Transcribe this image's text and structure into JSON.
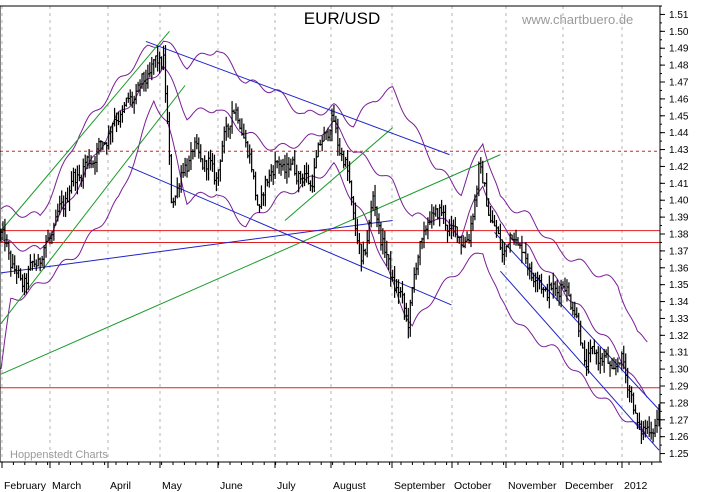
{
  "chart_data": {
    "type": "ohlc",
    "title": "EUR/USD",
    "watermark": "www.chartbuero.de",
    "source": "Hoppenstedt Charts",
    "yticks": [
      "1.25",
      "1.26",
      "1.27",
      "1.28",
      "1.29",
      "1.30",
      "1.31",
      "1.32",
      "1.33",
      "1.34",
      "1.35",
      "1.36",
      "1.37",
      "1.38",
      "1.39",
      "1.40",
      "1.41",
      "1.42",
      "1.43",
      "1.44",
      "1.45",
      "1.46",
      "1.47",
      "1.48",
      "1.49",
      "1.50",
      "1.51"
    ],
    "ylim": [
      1.245,
      1.515
    ],
    "months": [
      "February",
      "March",
      "April",
      "May",
      "June",
      "July",
      "August",
      "September",
      "October",
      "November",
      "December",
      "2012"
    ],
    "colors": {
      "bars": "#000000",
      "bands": "#7a1f96",
      "channel": "#1f23c8",
      "trend": "#1a9a2a",
      "levels": "#e02020",
      "grid": "#b4b4b4"
    },
    "horizontal_levels": [
      1.429,
      1.382,
      1.375,
      1.289
    ],
    "dotted_levels": [
      1.429
    ],
    "anchors": [
      [
        0,
        1.38
      ],
      [
        10,
        1.35
      ],
      [
        22,
        1.37
      ],
      [
        36,
        1.41
      ],
      [
        50,
        1.43
      ],
      [
        60,
        1.45
      ],
      [
        70,
        1.465
      ],
      [
        78,
        1.48
      ],
      [
        83,
        1.485
      ],
      [
        87,
        1.4
      ],
      [
        98,
        1.43
      ],
      [
        110,
        1.415
      ],
      [
        118,
        1.455
      ],
      [
        124,
        1.44
      ],
      [
        132,
        1.395
      ],
      [
        138,
        1.42
      ],
      [
        148,
        1.42
      ],
      [
        158,
        1.41
      ],
      [
        165,
        1.44
      ],
      [
        170,
        1.445
      ],
      [
        178,
        1.41
      ],
      [
        184,
        1.36
      ],
      [
        190,
        1.4
      ],
      [
        198,
        1.36
      ],
      [
        208,
        1.33
      ],
      [
        214,
        1.375
      ],
      [
        222,
        1.395
      ],
      [
        232,
        1.38
      ],
      [
        239,
        1.375
      ],
      [
        244,
        1.42
      ],
      [
        250,
        1.39
      ],
      [
        256,
        1.37
      ],
      [
        262,
        1.38
      ],
      [
        272,
        1.355
      ],
      [
        280,
        1.345
      ],
      [
        286,
        1.35
      ],
      [
        292,
        1.34
      ],
      [
        298,
        1.305
      ],
      [
        304,
        1.31
      ],
      [
        312,
        1.3
      ],
      [
        318,
        1.305
      ],
      [
        324,
        1.27
      ],
      [
        330,
        1.262
      ],
      [
        336,
        1.272
      ]
    ],
    "bands_upper": [
      [
        0,
        1.395
      ],
      [
        20,
        1.39
      ],
      [
        40,
        1.44
      ],
      [
        60,
        1.47
      ],
      [
        75,
        1.49
      ],
      [
        83,
        1.495
      ],
      [
        95,
        1.48
      ],
      [
        110,
        1.49
      ],
      [
        125,
        1.47
      ],
      [
        140,
        1.465
      ],
      [
        155,
        1.45
      ],
      [
        170,
        1.455
      ],
      [
        180,
        1.445
      ],
      [
        190,
        1.46
      ],
      [
        200,
        1.465
      ],
      [
        210,
        1.445
      ],
      [
        222,
        1.42
      ],
      [
        235,
        1.405
      ],
      [
        246,
        1.435
      ],
      [
        255,
        1.4
      ],
      [
        270,
        1.39
      ],
      [
        285,
        1.37
      ],
      [
        300,
        1.36
      ],
      [
        315,
        1.35
      ],
      [
        325,
        1.32
      ],
      [
        330,
        1.318
      ]
    ],
    "bands_middle": [
      [
        0,
        1.375
      ],
      [
        20,
        1.37
      ],
      [
        40,
        1.41
      ],
      [
        60,
        1.45
      ],
      [
        75,
        1.47
      ],
      [
        83,
        1.48
      ],
      [
        95,
        1.45
      ],
      [
        110,
        1.455
      ],
      [
        125,
        1.44
      ],
      [
        140,
        1.43
      ],
      [
        155,
        1.435
      ],
      [
        170,
        1.445
      ],
      [
        180,
        1.43
      ],
      [
        190,
        1.42
      ],
      [
        200,
        1.41
      ],
      [
        210,
        1.39
      ],
      [
        222,
        1.39
      ],
      [
        235,
        1.38
      ],
      [
        246,
        1.41
      ],
      [
        255,
        1.385
      ],
      [
        270,
        1.37
      ],
      [
        285,
        1.35
      ],
      [
        300,
        1.33
      ],
      [
        315,
        1.31
      ],
      [
        325,
        1.29
      ],
      [
        330,
        1.285
      ]
    ],
    "bands_lower": [
      [
        0,
        1.3
      ],
      [
        5,
        1.34
      ],
      [
        20,
        1.35
      ],
      [
        40,
        1.37
      ],
      [
        60,
        1.4
      ],
      [
        70,
        1.43
      ],
      [
        78,
        1.46
      ],
      [
        85,
        1.445
      ],
      [
        95,
        1.4
      ],
      [
        110,
        1.405
      ],
      [
        125,
        1.385
      ],
      [
        140,
        1.4
      ],
      [
        155,
        1.41
      ],
      [
        170,
        1.42
      ],
      [
        180,
        1.4
      ],
      [
        190,
        1.38
      ],
      [
        200,
        1.35
      ],
      [
        210,
        1.325
      ],
      [
        222,
        1.345
      ],
      [
        235,
        1.36
      ],
      [
        246,
        1.37
      ],
      [
        255,
        1.34
      ],
      [
        270,
        1.32
      ],
      [
        285,
        1.31
      ],
      [
        300,
        1.29
      ],
      [
        315,
        1.275
      ],
      [
        325,
        1.265
      ],
      [
        330,
        1.262
      ]
    ],
    "channel_lines": [
      [
        [
          74,
          1.494
        ],
        [
          229,
          1.427
        ]
      ],
      [
        [
          65,
          1.42
        ],
        [
          230,
          1.338
        ]
      ],
      [
        [
          0,
          1.357
        ],
        [
          200,
          1.388
        ]
      ],
      [
        [
          252,
          1.381
        ],
        [
          336,
          1.276
        ]
      ],
      [
        [
          255,
          1.358
        ],
        [
          336,
          1.252
        ]
      ]
    ],
    "trend_lines": [
      [
        [
          0,
          1.297
        ],
        [
          255,
          1.427
        ]
      ],
      [
        [
          0,
          1.382
        ],
        [
          86,
          1.5
        ]
      ],
      [
        [
          0,
          1.327
        ],
        [
          94,
          1.468
        ]
      ],
      [
        [
          145,
          1.388
        ],
        [
          200,
          1.443
        ]
      ]
    ]
  }
}
